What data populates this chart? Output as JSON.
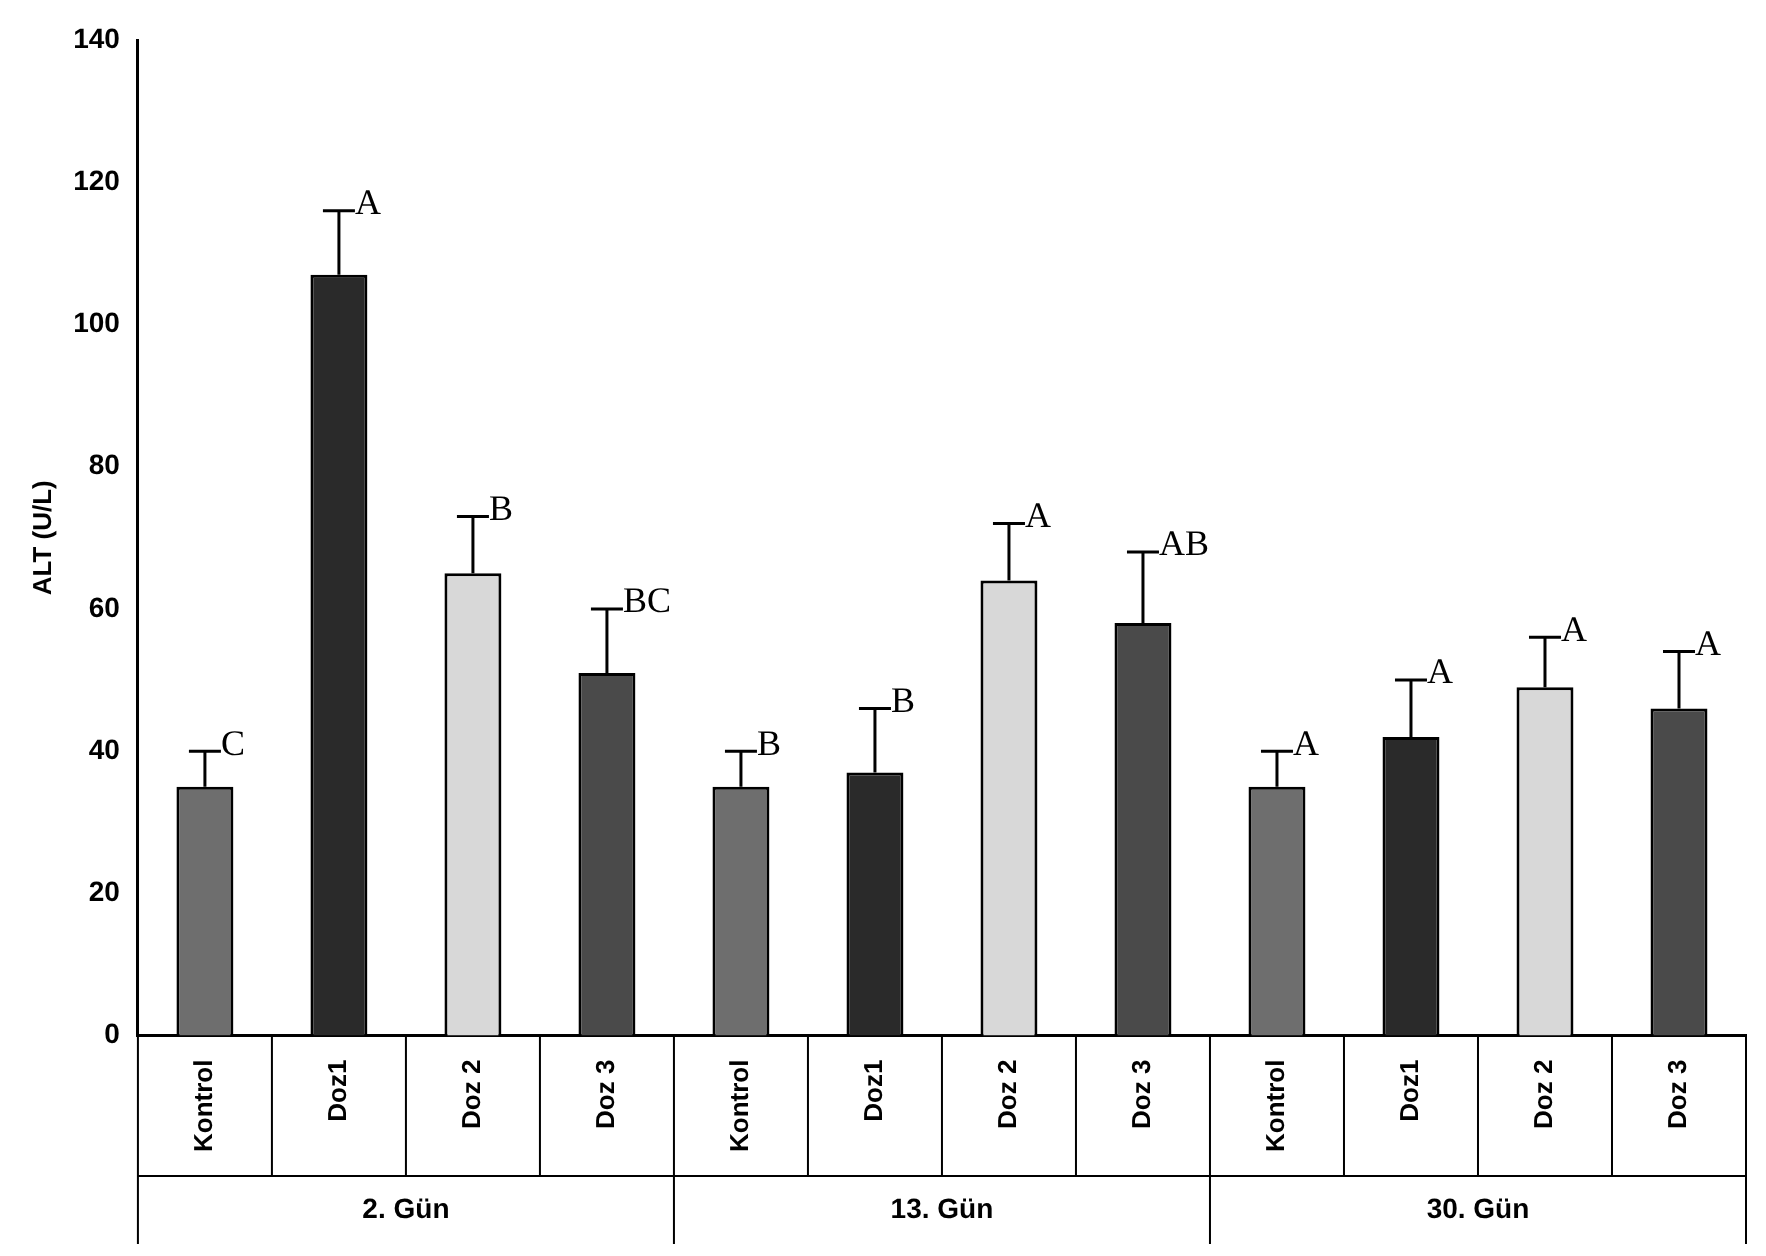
{
  "chart_data": {
    "type": "bar",
    "ylabel": "ALT (U/L)",
    "categories": [
      "Kontrol",
      "Doz1",
      "Doz 2",
      "Doz 3",
      "Kontrol",
      "Doz1",
      "Doz 2",
      "Doz 3",
      "Kontrol",
      "Doz1",
      "Doz 2",
      "Doz 3"
    ],
    "values": [
      35,
      107,
      65,
      51,
      35,
      37,
      64,
      58,
      35,
      42,
      49,
      46
    ],
    "colors": [
      "#6e6e6e",
      "#2a2a2a",
      "#d8d8d8",
      "#4a4a4a",
      "#6e6e6e",
      "#2a2a2a",
      "#d8d8d8",
      "#4a4a4a",
      "#6e6e6e",
      "#2a2a2a",
      "#d8d8d8",
      "#4a4a4a"
    ],
    "errors": [
      [
        35,
        40
      ],
      [
        107,
        116
      ],
      [
        65,
        73
      ],
      [
        51,
        60
      ],
      [
        35,
        40
      ],
      [
        37,
        46
      ],
      [
        64,
        72
      ],
      [
        58,
        68
      ],
      [
        35,
        40
      ],
      [
        42,
        50
      ],
      [
        49,
        56
      ],
      [
        46,
        54
      ]
    ],
    "ylim": [
      0,
      140
    ],
    "yticks": [
      0,
      20,
      40,
      60,
      80,
      100,
      120,
      140
    ],
    "grid": false,
    "legend": false,
    "annotations": [
      "C",
      "A",
      "B",
      "BC",
      "B",
      "B",
      "A",
      "AB",
      "A",
      "A",
      "A",
      "A",
      "2. Gün",
      "13. Gün",
      "30. Gün"
    ]
  }
}
